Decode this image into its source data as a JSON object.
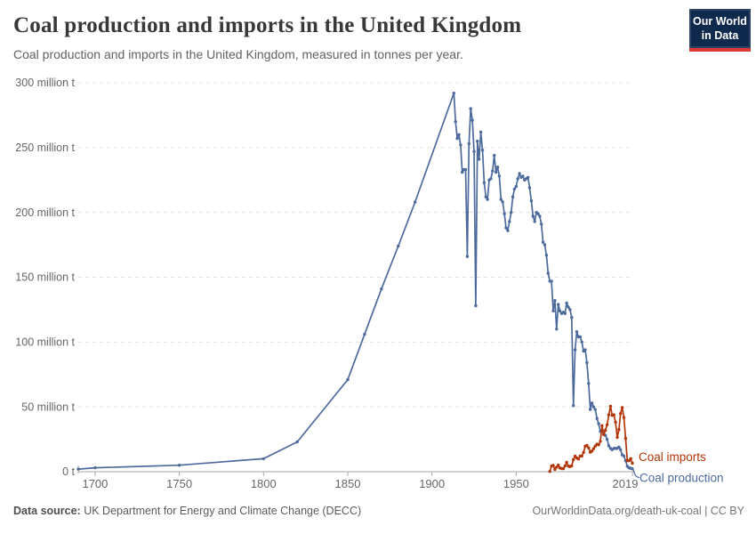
{
  "header": {
    "title": "Coal production and imports in the United Kingdom",
    "subtitle": "Coal production and imports in the United Kingdom, measured in tonnes per year.",
    "logo": {
      "line1": "Our World",
      "line2": "in Data"
    }
  },
  "colors": {
    "brand_navy": "#102A4E",
    "brand_red": "#DC3A34",
    "production_blue": "#4C6A9C",
    "imports_red": "#B13507",
    "gridline": "#E0E0E0",
    "axis": "#A5A5A5",
    "tick_text": "#666666"
  },
  "chart_data": {
    "type": "line",
    "title": "Coal production and imports in the United Kingdom",
    "xlabel": "",
    "ylabel": "tonnes per year",
    "unit": "million tonnes",
    "grid": "horizontal-dashed",
    "legend_position": "end-of-line-labels",
    "x_range": [
      1690,
      2019
    ],
    "y_range": [
      0,
      300
    ],
    "x_ticks": [
      1700,
      1750,
      1800,
      1850,
      1900,
      1950,
      2019
    ],
    "y_ticks": [
      {
        "value": 0,
        "label": "0 t"
      },
      {
        "value": 50,
        "label": "50 million t"
      },
      {
        "value": 100,
        "label": "100 million t"
      },
      {
        "value": 150,
        "label": "150 million t"
      },
      {
        "value": 200,
        "label": "200 million t"
      },
      {
        "value": 250,
        "label": "250 million t"
      },
      {
        "value": 300,
        "label": "300 million t"
      }
    ],
    "series": [
      {
        "name": "Coal production",
        "color": "#4C6A9C",
        "label_offset": [
          5,
          14.5
        ],
        "leader_line": true,
        "points": [
          [
            1690,
            2
          ],
          [
            1700,
            3
          ],
          [
            1750,
            5
          ],
          [
            1800,
            10
          ],
          [
            1820,
            23
          ],
          [
            1850,
            71
          ],
          [
            1860,
            106
          ],
          [
            1870,
            141
          ],
          [
            1880,
            174
          ],
          [
            1890,
            208
          ],
          [
            1913,
            292
          ],
          [
            1914,
            270
          ],
          [
            1915,
            257
          ],
          [
            1916,
            260
          ],
          [
            1917,
            252
          ],
          [
            1918,
            231
          ],
          [
            1919,
            233
          ],
          [
            1920,
            233
          ],
          [
            1921,
            166
          ],
          [
            1922,
            253
          ],
          [
            1923,
            280
          ],
          [
            1924,
            271
          ],
          [
            1925,
            247
          ],
          [
            1926,
            128
          ],
          [
            1927,
            255
          ],
          [
            1928,
            241
          ],
          [
            1929,
            262
          ],
          [
            1930,
            248
          ],
          [
            1931,
            223
          ],
          [
            1932,
            212
          ],
          [
            1933,
            210
          ],
          [
            1934,
            225
          ],
          [
            1935,
            226
          ],
          [
            1936,
            232
          ],
          [
            1937,
            244
          ],
          [
            1938,
            231
          ],
          [
            1939,
            235
          ],
          [
            1940,
            228
          ],
          [
            1941,
            210
          ],
          [
            1942,
            208
          ],
          [
            1943,
            199
          ],
          [
            1944,
            188
          ],
          [
            1945,
            186
          ],
          [
            1946,
            193
          ],
          [
            1947,
            200
          ],
          [
            1948,
            212
          ],
          [
            1949,
            218
          ],
          [
            1950,
            220
          ],
          [
            1951,
            226
          ],
          [
            1952,
            230
          ],
          [
            1953,
            227
          ],
          [
            1954,
            228
          ],
          [
            1955,
            225
          ],
          [
            1956,
            226
          ],
          [
            1957,
            227
          ],
          [
            1958,
            219
          ],
          [
            1959,
            209
          ],
          [
            1960,
            197
          ],
          [
            1961,
            193
          ],
          [
            1962,
            200
          ],
          [
            1963,
            199
          ],
          [
            1964,
            197
          ],
          [
            1965,
            191
          ],
          [
            1966,
            177
          ],
          [
            1967,
            175
          ],
          [
            1968,
            167
          ],
          [
            1969,
            153
          ],
          [
            1970,
            147
          ],
          [
            1971,
            147
          ],
          [
            1972,
            124
          ],
          [
            1973,
            132
          ],
          [
            1974,
            110
          ],
          [
            1975,
            129
          ],
          [
            1976,
            124
          ],
          [
            1977,
            122
          ],
          [
            1978,
            123
          ],
          [
            1979,
            122
          ],
          [
            1980,
            130
          ],
          [
            1981,
            127
          ],
          [
            1982,
            125
          ],
          [
            1983,
            119
          ],
          [
            1984,
            51
          ],
          [
            1985,
            94
          ],
          [
            1986,
            108
          ],
          [
            1987,
            104
          ],
          [
            1988,
            104
          ],
          [
            1989,
            100
          ],
          [
            1990,
            93
          ],
          [
            1991,
            94
          ],
          [
            1992,
            84
          ],
          [
            1993,
            68
          ],
          [
            1994,
            48
          ],
          [
            1995,
            53
          ],
          [
            1996,
            50
          ],
          [
            1997,
            48
          ],
          [
            1998,
            41
          ],
          [
            1999,
            37
          ],
          [
            2000,
            31
          ],
          [
            2001,
            32
          ],
          [
            2002,
            30
          ],
          [
            2003,
            28
          ],
          [
            2004,
            25
          ],
          [
            2005,
            20
          ],
          [
            2006,
            18
          ],
          [
            2007,
            17
          ],
          [
            2008,
            18
          ],
          [
            2009,
            18
          ],
          [
            2010,
            18
          ],
          [
            2011,
            19
          ],
          [
            2012,
            17
          ],
          [
            2013,
            13
          ],
          [
            2014,
            12
          ],
          [
            2015,
            8.6
          ],
          [
            2016,
            4.2
          ],
          [
            2017,
            3
          ],
          [
            2018,
            2.6
          ],
          [
            2019,
            2.2
          ]
        ]
      },
      {
        "name": "Coal imports",
        "color": "#B13507",
        "label_offset": [
          4,
          -2.5
        ],
        "leader_line": false,
        "points": [
          [
            1970,
            0.2
          ],
          [
            1971,
            4.4
          ],
          [
            1972,
            4.8
          ],
          [
            1973,
            1.7
          ],
          [
            1974,
            3.5
          ],
          [
            1975,
            5.1
          ],
          [
            1976,
            2.9
          ],
          [
            1977,
            2.4
          ],
          [
            1978,
            2.3
          ],
          [
            1979,
            4.4
          ],
          [
            1980,
            7.3
          ],
          [
            1981,
            4.3
          ],
          [
            1982,
            4.0
          ],
          [
            1983,
            4.5
          ],
          [
            1984,
            9.3
          ],
          [
            1985,
            12.1
          ],
          [
            1986,
            10.6
          ],
          [
            1987,
            9.8
          ],
          [
            1988,
            12.0
          ],
          [
            1989,
            12.1
          ],
          [
            1990,
            14.8
          ],
          [
            1991,
            19.6
          ],
          [
            1992,
            20.3
          ],
          [
            1993,
            18.4
          ],
          [
            1994,
            15.0
          ],
          [
            1995,
            15.9
          ],
          [
            1996,
            17.8
          ],
          [
            1997,
            19.8
          ],
          [
            1998,
            21.2
          ],
          [
            1999,
            20.8
          ],
          [
            2000,
            23.4
          ],
          [
            2001,
            35.5
          ],
          [
            2002,
            28.7
          ],
          [
            2003,
            31.9
          ],
          [
            2004,
            36.2
          ],
          [
            2005,
            43.9
          ],
          [
            2006,
            50.5
          ],
          [
            2007,
            43.4
          ],
          [
            2008,
            43.9
          ],
          [
            2009,
            38.2
          ],
          [
            2010,
            26.5
          ],
          [
            2011,
            32.5
          ],
          [
            2012,
            44.8
          ],
          [
            2013,
            49.4
          ],
          [
            2014,
            41.8
          ],
          [
            2015,
            25.7
          ],
          [
            2016,
            8.5
          ],
          [
            2017,
            8.5
          ],
          [
            2018,
            10.1
          ],
          [
            2019,
            6.5
          ]
        ]
      }
    ]
  },
  "footer": {
    "source_label": "Data source:",
    "source_text": " UK Department for Energy and Climate Change (DECC)",
    "credit": "OurWorldinData.org/death-uk-coal | CC BY"
  }
}
